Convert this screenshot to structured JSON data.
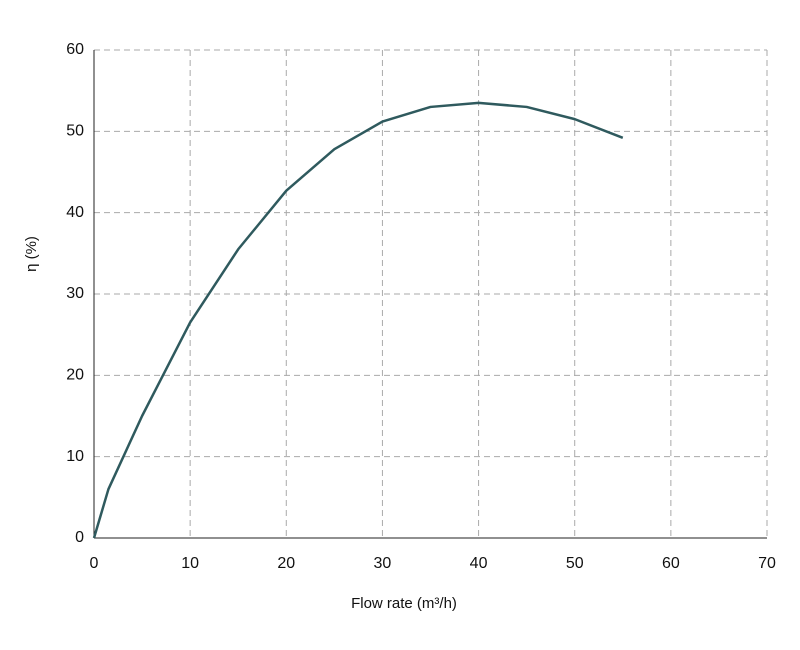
{
  "chart_data": {
    "type": "line",
    "x_label": "Flow rate (m³/h)",
    "y_label": "η (%)",
    "x": [
      0,
      1.5,
      5,
      10,
      15,
      20,
      25,
      30,
      35,
      40,
      45,
      50,
      55
    ],
    "series": [
      {
        "color": "#2f5a5e",
        "values": [
          0,
          6,
          15,
          26.5,
          35.5,
          42.7,
          47.8,
          51.2,
          53,
          53.5,
          53,
          51.5,
          49.2
        ]
      }
    ],
    "xlim": [
      0,
      70
    ],
    "xticks": [
      0,
      10,
      20,
      30,
      40,
      50,
      60,
      70
    ],
    "ylim": [
      0,
      60
    ],
    "yticks": [
      0,
      10,
      20,
      30,
      40,
      50,
      60
    ],
    "grid": true
  }
}
